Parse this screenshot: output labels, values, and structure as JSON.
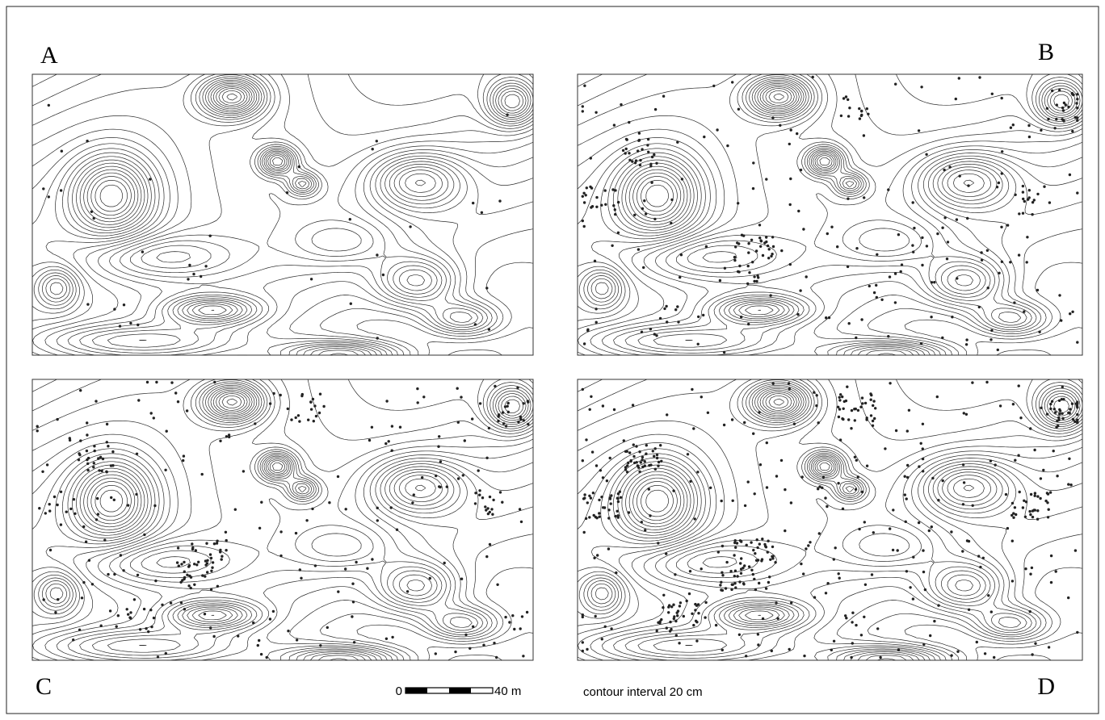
{
  "panels": [
    {
      "label": "A"
    },
    {
      "label": "B"
    },
    {
      "label": "C"
    },
    {
      "label": "D"
    }
  ],
  "scale_bar": {
    "start": "0",
    "end": "40 m"
  },
  "contour_note": "contour interval 20 cm"
}
